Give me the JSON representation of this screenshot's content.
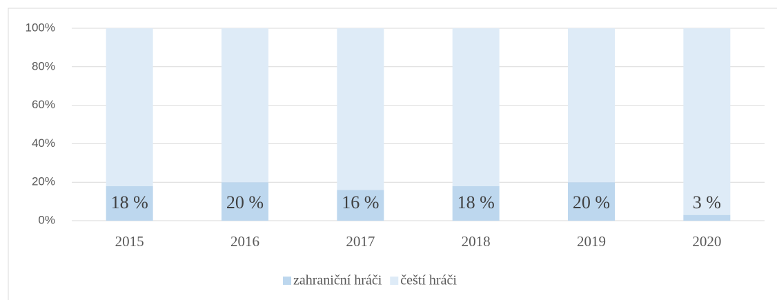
{
  "chart_data": {
    "type": "bar",
    "stacked": true,
    "categories": [
      "2015",
      "2016",
      "2017",
      "2018",
      "2019",
      "2020"
    ],
    "series": [
      {
        "name": "zahraniční hráči",
        "color": "#bdd7ee",
        "values": [
          18,
          20,
          16,
          18,
          20,
          3
        ],
        "value_labels": [
          "18 %",
          "20 %",
          "16 %",
          "18 %",
          "20 %",
          "3 %"
        ]
      },
      {
        "name": "čeští hráči",
        "color": "#deebf7",
        "values": [
          82,
          80,
          84,
          82,
          80,
          97
        ]
      }
    ],
    "ylim": [
      0,
      100
    ],
    "yticks": [
      {
        "value": 0,
        "label": "0%"
      },
      {
        "value": 20,
        "label": "20%"
      },
      {
        "value": 40,
        "label": "40%"
      },
      {
        "value": 60,
        "label": "60%"
      },
      {
        "value": 80,
        "label": "80%"
      },
      {
        "value": 100,
        "label": "100%"
      }
    ],
    "grid": true,
    "legend": "bottom"
  }
}
